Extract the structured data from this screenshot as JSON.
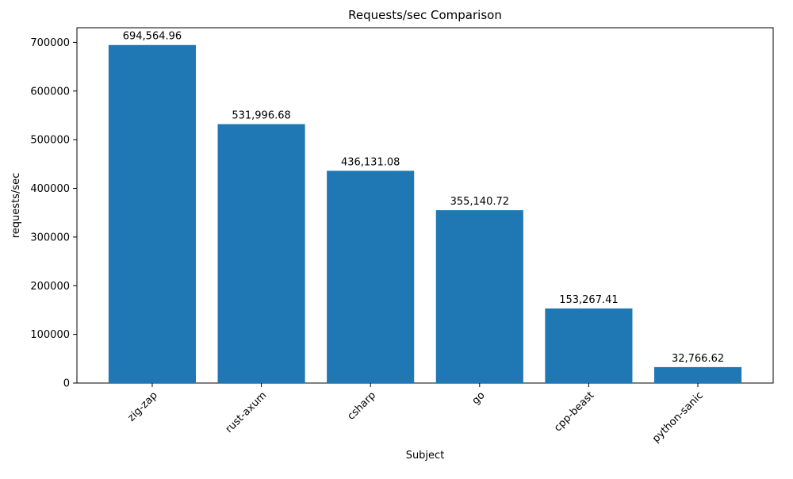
{
  "chart_data": {
    "type": "bar",
    "title": "Requests/sec Comparison",
    "xlabel": "Subject",
    "ylabel": "requests/sec",
    "categories": [
      "zig-zap",
      "rust-axum",
      "csharp",
      "go",
      "cpp-beast",
      "python-sanic"
    ],
    "values": [
      694564.96,
      531996.68,
      436131.08,
      355140.72,
      153267.41,
      32766.62
    ],
    "value_labels": [
      "694,564.96",
      "531,996.68",
      "436,131.08",
      "355,140.72",
      "153,267.41",
      "32,766.62"
    ],
    "yticks": [
      0,
      100000,
      200000,
      300000,
      400000,
      500000,
      600000,
      700000
    ],
    "ylim": [
      0,
      730000
    ],
    "bar_color": "#1f77b4",
    "x_tick_rotation": 45,
    "grid": false,
    "legend_position": "none"
  }
}
